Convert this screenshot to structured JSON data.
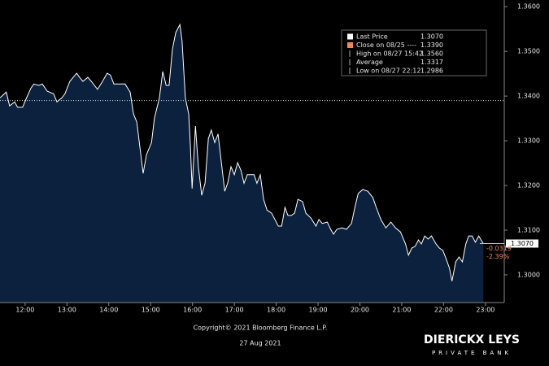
{
  "chart_data": {
    "type": "area",
    "series": [
      {
        "name": "Last Price",
        "color": "#ffffff",
        "fill": "#0b213d",
        "x": [
          11.4,
          11.55,
          11.63,
          11.75,
          11.82,
          11.94,
          12.02,
          12.14,
          12.21,
          12.33,
          12.41,
          12.53,
          12.68,
          12.76,
          12.88,
          12.95,
          13.07,
          13.15,
          13.23,
          13.3,
          13.38,
          13.5,
          13.58,
          13.73,
          13.85,
          13.96,
          14.04,
          14.12,
          14.39,
          14.51,
          14.59,
          14.67,
          14.74,
          14.82,
          14.9,
          15.02,
          15.09,
          15.21,
          15.29,
          15.37,
          15.44,
          15.52,
          15.6,
          15.7,
          15.75,
          15.83,
          15.91,
          15.95,
          15.99,
          16.07,
          16.14,
          16.22,
          16.3,
          16.38,
          16.45,
          16.53,
          16.61,
          16.69,
          16.77,
          16.84,
          16.92,
          17.0,
          17.08,
          17.16,
          17.23,
          17.31,
          17.47,
          17.54,
          17.62,
          17.7,
          17.78,
          17.89,
          17.97,
          18.05,
          18.13,
          18.21,
          18.28,
          18.36,
          18.44,
          18.52,
          18.63,
          18.71,
          18.83,
          18.95,
          19.02,
          19.1,
          19.22,
          19.3,
          19.37,
          19.45,
          19.57,
          19.68,
          19.8,
          19.88,
          19.96,
          20.07,
          20.19,
          20.31,
          20.39,
          20.5,
          20.62,
          20.74,
          20.85,
          20.97,
          21.09,
          21.16,
          21.24,
          21.32,
          21.4,
          21.47,
          21.55,
          21.63,
          21.71,
          21.82,
          21.9,
          21.98,
          22.06,
          22.14,
          22.2,
          22.29,
          22.37,
          22.45,
          22.53,
          22.6,
          22.68,
          22.76,
          22.84,
          22.91,
          22.95
        ],
        "values": [
          1.3396,
          1.3409,
          1.3378,
          1.3387,
          1.3375,
          1.3375,
          1.3393,
          1.3418,
          1.3427,
          1.3424,
          1.3427,
          1.3411,
          1.3405,
          1.3387,
          1.3396,
          1.3405,
          1.3433,
          1.3442,
          1.3451,
          1.3442,
          1.3433,
          1.3442,
          1.3433,
          1.3415,
          1.3433,
          1.3451,
          1.3447,
          1.3427,
          1.3427,
          1.3409,
          1.336,
          1.3342,
          1.3287,
          1.3227,
          1.3269,
          1.3296,
          1.3351,
          1.3396,
          1.3455,
          1.3424,
          1.3424,
          1.3505,
          1.3542,
          1.356,
          1.3524,
          1.3396,
          1.336,
          1.3287,
          1.3193,
          1.3333,
          1.3242,
          1.3178,
          1.3205,
          1.3305,
          1.3324,
          1.3296,
          1.3315,
          1.3251,
          1.3187,
          1.3205,
          1.3242,
          1.3224,
          1.3251,
          1.3233,
          1.3205,
          1.3224,
          1.3224,
          1.3205,
          1.3224,
          1.3169,
          1.3145,
          1.3138,
          1.3124,
          1.3109,
          1.3109,
          1.3151,
          1.3133,
          1.3133,
          1.3138,
          1.3169,
          1.3164,
          1.3138,
          1.3127,
          1.3109,
          1.3124,
          1.3115,
          1.3118,
          1.3102,
          1.3091,
          1.3102,
          1.3105,
          1.3102,
          1.3115,
          1.3151,
          1.3182,
          1.3191,
          1.3187,
          1.3173,
          1.3151,
          1.3124,
          1.3105,
          1.3118,
          1.3105,
          1.3096,
          1.3069,
          1.3044,
          1.306,
          1.3064,
          1.3078,
          1.3069,
          1.3087,
          1.308,
          1.3087,
          1.3069,
          1.306,
          1.3055,
          1.3036,
          1.3015,
          1.2986,
          1.3029,
          1.304,
          1.3029,
          1.3069,
          1.3087,
          1.3087,
          1.3073,
          1.3087,
          1.3076,
          1.307
        ]
      }
    ],
    "legend": [
      {
        "label": "Last Price",
        "value": {
          "value": 1.307,
          "label": "1.3070"
        }
      },
      {
        "label": "Close on 08/25 ----",
        "value": {
          "value": 1.339,
          "label": "1.3390"
        }
      },
      {
        "label": "High on 08/27 15:42",
        "value": {
          "value": 1.356,
          "label": "1.3560"
        }
      },
      {
        "label": "Average",
        "value": {
          "value": 1.3317,
          "label": "1.3317"
        }
      },
      {
        "label": "Low on 08/27 22:12",
        "value": {
          "value": 1.2986,
          "label": "1.2986"
        }
      }
    ],
    "change": -0.0319,
    "change_pct": {
      "value": -2.39,
      "label": "-2.39%"
    },
    "xlim": [
      11.4,
      23.45
    ],
    "ylim": [
      1.2938,
      1.3615
    ],
    "xticks": [
      {
        "value": 12,
        "label": "12:00"
      },
      {
        "value": 13,
        "label": "13:00"
      },
      {
        "value": 14,
        "label": "14:00"
      },
      {
        "value": 15,
        "label": "15:00"
      },
      {
        "value": 16,
        "label": "16:00"
      },
      {
        "value": 17,
        "label": "17:00"
      },
      {
        "value": 18,
        "label": "18:00"
      },
      {
        "value": 19,
        "label": "19:00"
      },
      {
        "value": 20,
        "label": "20:00"
      },
      {
        "value": 21,
        "label": "21:00"
      },
      {
        "value": 22,
        "label": "22:00"
      },
      {
        "value": 23,
        "label": "23:00"
      }
    ],
    "yticks": [
      {
        "value": 1.3,
        "label": "1.3000"
      },
      {
        "value": 1.31,
        "label": "1.3100"
      },
      {
        "value": 1.32,
        "label": "1.3200"
      },
      {
        "value": 1.33,
        "label": "1.3300"
      },
      {
        "value": 1.34,
        "label": "1.3400"
      },
      {
        "value": 1.35,
        "label": "1.3500"
      },
      {
        "value": 1.36,
        "label": "1.3600"
      }
    ],
    "copyright": "Copyright© 2021 Bloomberg Finance L.P.",
    "date": "27 Aug 2021",
    "brand": "DIERICKX LEYS",
    "brand_sub": "PRIVATE BANK"
  }
}
